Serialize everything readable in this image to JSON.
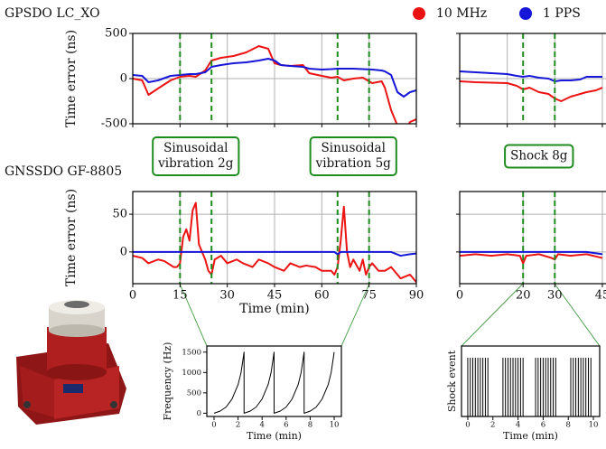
{
  "chart_data": [
    {
      "type": "line",
      "title": "GPSDO LC_XO",
      "ylabel": "Time error (ns)",
      "tick_labels": "y",
      "grid": true,
      "xlim": [
        0,
        90
      ],
      "ylim": [
        -500,
        500
      ],
      "xticks": [
        0,
        15,
        30,
        45,
        60,
        75,
        90
      ],
      "yticks": [
        -500,
        0,
        500
      ],
      "events": [
        15,
        25,
        65,
        75
      ],
      "event_color": "#1e8c1e",
      "x": [
        0,
        3,
        5,
        8,
        12,
        15,
        18,
        20,
        23,
        25,
        28,
        32,
        36,
        40,
        43,
        45,
        47,
        50,
        54,
        56,
        60,
        63,
        65,
        67,
        70,
        73,
        76,
        79,
        80,
        82,
        84,
        86,
        88,
        90
      ],
      "series": [
        {
          "name": "10 MHz",
          "color": "#ec1313",
          "values": [
            0,
            -20,
            -180,
            -110,
            -20,
            20,
            30,
            20,
            90,
            200,
            230,
            250,
            290,
            360,
            330,
            170,
            150,
            140,
            150,
            60,
            30,
            10,
            20,
            -20,
            0,
            10,
            -50,
            -30,
            -100,
            -350,
            -520,
            -600,
            -480,
            -450
          ]
        },
        {
          "name": "1 PPS",
          "color": "#1616d8",
          "values": [
            40,
            30,
            -40,
            -20,
            30,
            40,
            50,
            50,
            70,
            130,
            150,
            170,
            180,
            200,
            220,
            200,
            150,
            140,
            130,
            110,
            100,
            105,
            110,
            110,
            110,
            105,
            100,
            90,
            80,
            40,
            -150,
            -200,
            -150,
            -130
          ]
        }
      ]
    },
    {
      "type": "line",
      "tick_labels": "none",
      "grid": true,
      "xlim": [
        0,
        47
      ],
      "ylim": [
        -500,
        500
      ],
      "xticks": [
        0,
        15,
        30,
        45
      ],
      "yticks": [
        -500,
        0,
        500
      ],
      "events": [
        20,
        30
      ],
      "event_color": "#1e8c1e",
      "x": [
        0,
        5,
        10,
        15,
        18,
        20,
        22,
        25,
        28,
        30,
        32,
        35,
        38,
        40,
        43,
        45
      ],
      "series": [
        {
          "color": "#ec1313",
          "values": [
            -30,
            -40,
            -45,
            -50,
            -80,
            -120,
            -100,
            -150,
            -170,
            -220,
            -250,
            -200,
            -170,
            -150,
            -130,
            -100
          ]
        },
        {
          "color": "#1616d8",
          "values": [
            80,
            70,
            60,
            50,
            30,
            20,
            30,
            10,
            0,
            -30,
            -20,
            -20,
            -10,
            20,
            20,
            20
          ]
        }
      ]
    },
    {
      "type": "line",
      "title": "GNSSDO GF-8805",
      "ylabel": "Time error (ns)",
      "xlabel": "Time (min)",
      "tick_labels": "xy",
      "grid": true,
      "xlim": [
        0,
        90
      ],
      "ylim": [
        -42,
        80
      ],
      "xticks": [
        0,
        15,
        30,
        45,
        60,
        75,
        90
      ],
      "yticks": [
        0,
        50
      ],
      "events": [
        15,
        25,
        65,
        75
      ],
      "event_color": "#1e8c1e",
      "annotations": [
        {
          "lines": [
            "Sinusoidal",
            "vibration 2g"
          ]
        },
        {
          "lines": [
            "Sinusoidal",
            "vibration 5g"
          ]
        }
      ],
      "x": [
        0,
        3,
        5,
        8,
        10,
        13,
        14,
        15,
        16,
        17,
        18,
        19,
        20,
        21,
        23,
        24,
        25,
        26,
        28,
        30,
        33,
        35,
        38,
        40,
        43,
        45,
        48,
        50,
        53,
        55,
        58,
        60,
        63,
        64,
        65,
        66,
        67,
        68,
        69,
        70,
        72,
        73,
        74,
        75,
        76,
        78,
        80,
        82,
        85,
        88,
        90
      ],
      "series": [
        {
          "color": "#ec1313",
          "values": [
            -5,
            -8,
            -15,
            -10,
            -12,
            -20,
            -20,
            -15,
            20,
            30,
            15,
            55,
            65,
            10,
            -10,
            -25,
            -30,
            -10,
            -5,
            -15,
            -10,
            -15,
            -20,
            -10,
            -15,
            -20,
            -25,
            -15,
            -20,
            -18,
            -20,
            -25,
            -25,
            -30,
            -20,
            15,
            60,
            0,
            -20,
            -10,
            -25,
            -10,
            -30,
            -20,
            -15,
            -25,
            -25,
            -20,
            -35,
            -30,
            -40
          ]
        },
        {
          "color": "#1616d8",
          "values": [
            0,
            0,
            0,
            0,
            0,
            0,
            0,
            0,
            0,
            0,
            0,
            0,
            0,
            0,
            0,
            0,
            0,
            0,
            0,
            0,
            0,
            0,
            0,
            0,
            0,
            0,
            0,
            0,
            0,
            0,
            0,
            0,
            0,
            0,
            -3,
            0,
            0,
            0,
            0,
            0,
            0,
            0,
            0,
            0,
            0,
            0,
            0,
            0,
            -5,
            -3,
            -2
          ]
        }
      ]
    },
    {
      "type": "line",
      "tick_labels": "x",
      "grid": true,
      "xlim": [
        0,
        47
      ],
      "ylim": [
        -42,
        80
      ],
      "xticks": [
        0,
        20,
        30,
        45
      ],
      "yticks": [
        0,
        50
      ],
      "events": [
        20,
        30
      ],
      "event_color": "#1e8c1e",
      "annotations": [
        {
          "lines": [
            "Shock 8g"
          ]
        }
      ],
      "x": [
        0,
        5,
        10,
        15,
        19,
        20,
        21,
        25,
        29,
        30,
        31,
        35,
        40,
        45
      ],
      "series": [
        {
          "color": "#ec1313",
          "values": [
            -5,
            -3,
            -5,
            -3,
            -5,
            -15,
            -5,
            -3,
            -8,
            -10,
            -3,
            -5,
            -3,
            -8
          ]
        },
        {
          "color": "#1616d8",
          "values": [
            0,
            0,
            0,
            0,
            0,
            0,
            0,
            0,
            0,
            0,
            0,
            0,
            0,
            -3
          ]
        }
      ]
    },
    {
      "type": "line",
      "ylabel": "Frequency (Hz)",
      "xlabel": "Time (min)",
      "tick_labels": "xy",
      "grid": false,
      "xlim": [
        -0.6,
        10.6
      ],
      "ylim": [
        -80,
        1650
      ],
      "xticks": [
        0,
        2,
        4,
        6,
        8,
        10
      ],
      "yticks": [
        0,
        500,
        1000,
        1500
      ],
      "x": [
        0,
        0.5,
        1,
        1.5,
        2,
        2.25,
        2.5,
        2.5,
        3,
        3.5,
        4,
        4.5,
        4.75,
        5,
        5,
        5.5,
        6,
        6.5,
        7,
        7.25,
        7.5,
        7.5,
        8,
        8.5,
        9,
        9.5,
        9.75,
        10
      ],
      "series": [
        {
          "color": "#000000",
          "values": [
            0,
            50,
            150,
            350,
            700,
            1000,
            1500,
            0,
            50,
            150,
            350,
            700,
            1000,
            1500,
            0,
            50,
            150,
            350,
            700,
            1000,
            1500,
            0,
            50,
            150,
            350,
            700,
            1000,
            1500
          ]
        }
      ]
    },
    {
      "type": "stem",
      "ylabel": "Shock event",
      "xlabel": "Time (min)",
      "tick_labels": "x",
      "grid": false,
      "xlim": [
        -0.5,
        10.5
      ],
      "ylim": [
        0,
        1.2
      ],
      "xticks": [
        0,
        2,
        4,
        6,
        8,
        10
      ],
      "x": [
        0,
        0.2,
        0.4,
        0.6,
        0.8,
        1,
        1.2,
        1.4,
        1.6,
        2.8,
        3,
        3.2,
        3.4,
        3.6,
        3.8,
        4,
        4.2,
        4.4,
        5.4,
        5.6,
        5.8,
        6,
        6.2,
        6.4,
        6.6,
        6.8,
        7,
        8.2,
        8.4,
        8.6,
        8.8,
        9,
        9.2,
        9.4,
        9.6,
        9.8
      ],
      "series": [
        {
          "color": "#000000",
          "values": [
            1,
            1,
            1,
            1,
            1,
            1,
            1,
            1,
            1,
            1,
            1,
            1,
            1,
            1,
            1,
            1,
            1,
            1,
            1,
            1,
            1,
            1,
            1,
            1,
            1,
            1,
            1,
            1,
            1,
            1,
            1,
            1,
            1,
            1,
            1,
            1
          ]
        }
      ]
    }
  ]
}
